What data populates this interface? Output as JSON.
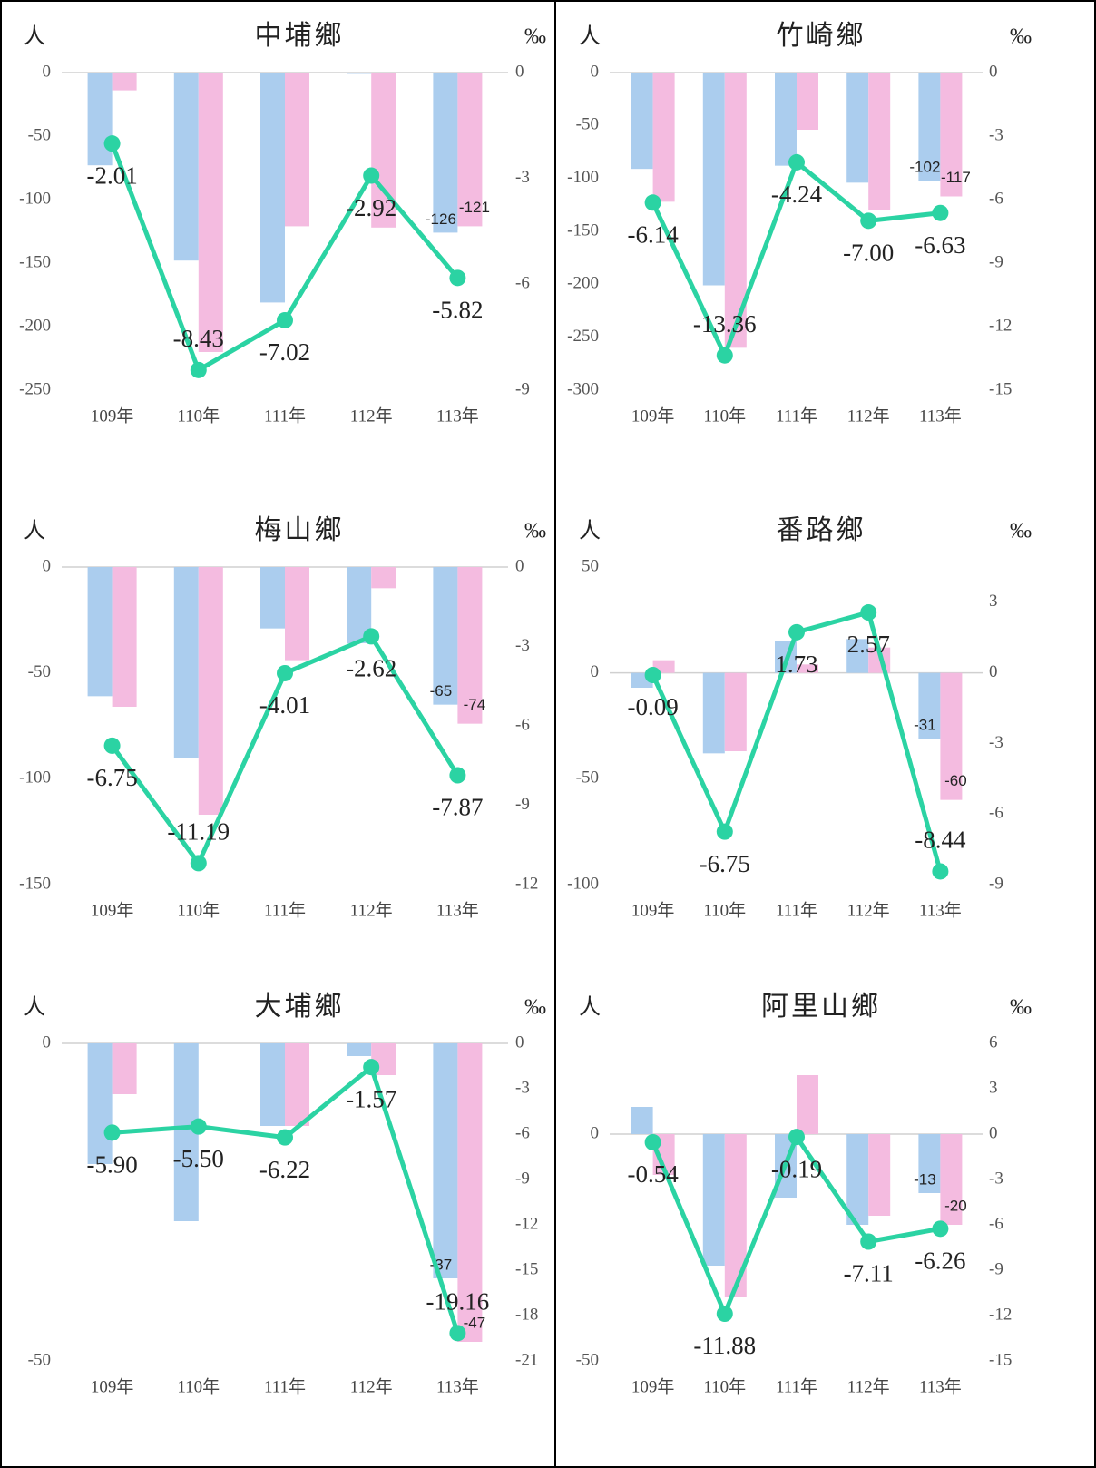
{
  "chart_data": [
    {
      "type": "combo",
      "title": "中埔鄉",
      "y_label": "人",
      "y2_label": "‰",
      "categories": [
        "109年",
        "110年",
        "111年",
        "112年",
        "113年"
      ],
      "ylim": [
        -250,
        0
      ],
      "yticks": [
        0,
        -50,
        -100,
        -150,
        -200,
        -250
      ],
      "y2lim": [
        -9,
        0
      ],
      "y2ticks": [
        0,
        -3,
        -6,
        -9
      ],
      "series": [
        {
          "type": "bar",
          "color": "#abcdee",
          "values": [
            -73,
            -148,
            -181,
            -1,
            -126
          ]
        },
        {
          "type": "bar",
          "color": "#f4bbe0",
          "values": [
            -14,
            -220,
            -121,
            -122,
            -121
          ]
        },
        {
          "type": "line",
          "axis": "y2",
          "color": "#2bd3a3",
          "values": [
            -2.01,
            -8.43,
            -7.02,
            -2.92,
            -5.82
          ],
          "value_labels": [
            "-2.01",
            "-8.43",
            "-7.02",
            "-2.92",
            "-5.82"
          ]
        }
      ]
    },
    {
      "type": "combo",
      "title": "竹崎鄉",
      "y_label": "人",
      "y2_label": "‰",
      "categories": [
        "109年",
        "110年",
        "111年",
        "112年",
        "113年"
      ],
      "ylim": [
        -300,
        0
      ],
      "yticks": [
        0,
        -50,
        -100,
        -150,
        -200,
        -250,
        -300
      ],
      "y2lim": [
        -15,
        0
      ],
      "y2ticks": [
        0,
        -3,
        -6,
        -9,
        -12,
        -15
      ],
      "series": [
        {
          "type": "bar",
          "color": "#abcdee",
          "values": [
            -91,
            -201,
            -88,
            -104,
            -102
          ]
        },
        {
          "type": "bar",
          "color": "#f4bbe0",
          "values": [
            -122,
            -260,
            -54,
            -130,
            -117
          ]
        },
        {
          "type": "line",
          "axis": "y2",
          "color": "#2bd3a3",
          "values": [
            -6.14,
            -13.36,
            -4.24,
            -7.0,
            -6.63
          ],
          "value_labels": [
            "-6.14",
            "-13.36",
            "-4.24",
            "-7.00",
            "-6.63"
          ]
        }
      ]
    },
    {
      "type": "combo",
      "title": "梅山鄉",
      "y_label": "人",
      "y2_label": "‰",
      "categories": [
        "109年",
        "110年",
        "111年",
        "112年",
        "113年"
      ],
      "ylim": [
        -150,
        0
      ],
      "yticks": [
        0,
        -50,
        -100,
        -150
      ],
      "y2lim": [
        -12,
        0
      ],
      "y2ticks": [
        0,
        -3,
        -6,
        -9,
        -12
      ],
      "series": [
        {
          "type": "bar",
          "color": "#abcdee",
          "values": [
            -61,
            -90,
            -29,
            -36,
            -65
          ]
        },
        {
          "type": "bar",
          "color": "#f4bbe0",
          "values": [
            -66,
            -117,
            -44,
            -10,
            -74
          ]
        },
        {
          "type": "line",
          "axis": "y2",
          "color": "#2bd3a3",
          "values": [
            -6.75,
            -11.19,
            -4.01,
            -2.62,
            -7.87
          ],
          "value_labels": [
            "-6.75",
            "-11.19",
            "-4.01",
            "-2.62",
            "-7.87"
          ]
        }
      ]
    },
    {
      "type": "combo",
      "title": "番路鄉",
      "y_label": "人",
      "y2_label": "‰",
      "categories": [
        "109年",
        "110年",
        "111年",
        "112年",
        "113年"
      ],
      "ylim": [
        -100,
        50
      ],
      "yticks": [
        50,
        0,
        -50,
        -100
      ],
      "y2lim": [
        -9,
        4.5
      ],
      "y2ticks": [
        3,
        0,
        -3,
        -6,
        -9
      ],
      "series": [
        {
          "type": "bar",
          "color": "#abcdee",
          "values": [
            -7,
            -38,
            15,
            16,
            -31
          ]
        },
        {
          "type": "bar",
          "color": "#f4bbe0",
          "values": [
            6,
            -37,
            4,
            12,
            -60
          ]
        },
        {
          "type": "line",
          "axis": "y2",
          "color": "#2bd3a3",
          "values": [
            -0.09,
            -6.75,
            1.73,
            2.57,
            -8.44
          ],
          "value_labels": [
            "-0.09",
            "-6.75",
            "1.73",
            "2.57",
            "-8.44"
          ]
        }
      ]
    },
    {
      "type": "combo",
      "title": "大埔鄉",
      "y_label": "人",
      "y2_label": "‰",
      "categories": [
        "109年",
        "110年",
        "111年",
        "112年",
        "113年"
      ],
      "ylim": [
        -50,
        0
      ],
      "yticks": [
        0,
        -50
      ],
      "y2lim": [
        -21,
        0
      ],
      "y2ticks": [
        0,
        -3,
        -6,
        -9,
        -12,
        -15,
        -18,
        -21
      ],
      "series": [
        {
          "type": "bar",
          "color": "#abcdee",
          "values": [
            -19,
            -28,
            -13,
            -2,
            -37
          ]
        },
        {
          "type": "bar",
          "color": "#f4bbe0",
          "values": [
            -8,
            0,
            -13,
            -5,
            -47
          ]
        },
        {
          "type": "line",
          "axis": "y2",
          "color": "#2bd3a3",
          "values": [
            -5.9,
            -5.5,
            -6.22,
            -1.57,
            -19.16
          ],
          "value_labels": [
            "-5.90",
            "-5.50",
            "-6.22",
            "-1.57",
            "-19.16"
          ]
        }
      ]
    },
    {
      "type": "combo",
      "title": "阿里山鄉",
      "y_label": "人",
      "y2_label": "‰",
      "categories": [
        "109年",
        "110年",
        "111年",
        "112年",
        "113年"
      ],
      "ylim": [
        -50,
        20
      ],
      "yticks": [
        0,
        -50
      ],
      "y2lim": [
        -15,
        6
      ],
      "y2ticks": [
        6,
        3,
        0,
        -3,
        -6,
        -9,
        -12,
        -15
      ],
      "series": [
        {
          "type": "bar",
          "color": "#abcdee",
          "values": [
            6,
            -29,
            -14,
            -20,
            -13
          ]
        },
        {
          "type": "bar",
          "color": "#f4bbe0",
          "values": [
            -9,
            -36,
            13,
            -18,
            -20
          ]
        },
        {
          "type": "line",
          "axis": "y2",
          "color": "#2bd3a3",
          "values": [
            -0.54,
            -11.88,
            -0.19,
            -7.11,
            -6.26
          ],
          "value_labels": [
            "-0.54",
            "-11.88",
            "-0.19",
            "-7.11",
            "-6.26"
          ]
        }
      ]
    }
  ]
}
